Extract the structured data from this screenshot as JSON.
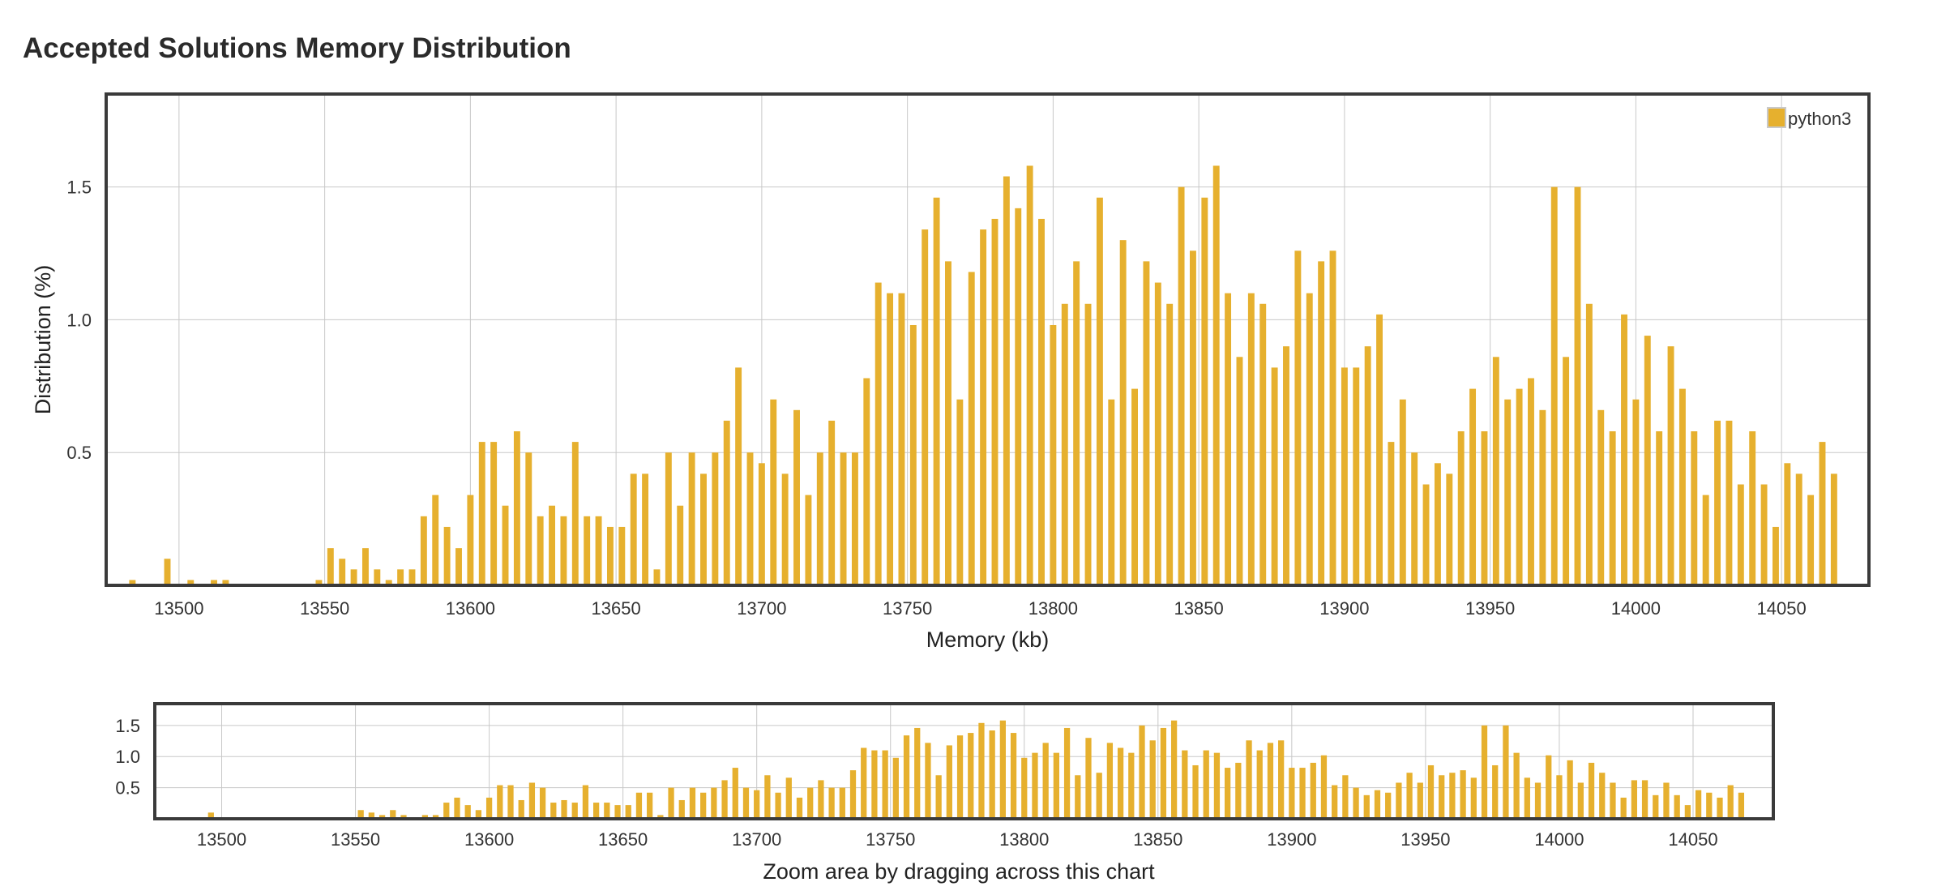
{
  "page": {
    "title": "Accepted Solutions Memory Distribution"
  },
  "navigator": {
    "hint": "Zoom area by dragging across this chart"
  },
  "colors": {
    "bar": "#e6b02e",
    "grid": "#c8c8c8",
    "frame": "#3a3a3a"
  },
  "chart_data": {
    "type": "bar",
    "title": "Accepted Solutions Memory Distribution",
    "xlabel": "Memory (kb)",
    "ylabel": "Distribution (%)",
    "xlim": [
      13475,
      14080
    ],
    "ylim": [
      0,
      1.85
    ],
    "x_ticks": [
      13500,
      13550,
      13600,
      13650,
      13700,
      13750,
      13800,
      13850,
      13900,
      13950,
      14000,
      14050
    ],
    "y_ticks": [
      0.5,
      1.0,
      1.5
    ],
    "y_tick_labels": [
      "0.5",
      "1.0",
      "1.5"
    ],
    "grid": true,
    "legend_position": "top-right",
    "series": [
      {
        "name": "python3",
        "color": "#e6b02e",
        "x": [
          13484,
          13496,
          13504,
          13512,
          13516,
          13548,
          13552,
          13556,
          13560,
          13564,
          13568,
          13572,
          13576,
          13580,
          13584,
          13588,
          13592,
          13596,
          13600,
          13604,
          13608,
          13612,
          13616,
          13620,
          13624,
          13628,
          13632,
          13636,
          13640,
          13644,
          13648,
          13652,
          13656,
          13660,
          13664,
          13668,
          13672,
          13676,
          13680,
          13684,
          13688,
          13692,
          13696,
          13700,
          13704,
          13708,
          13712,
          13716,
          13720,
          13724,
          13728,
          13732,
          13736,
          13740,
          13744,
          13748,
          13752,
          13756,
          13760,
          13764,
          13768,
          13772,
          13776,
          13780,
          13784,
          13788,
          13792,
          13796,
          13800,
          13804,
          13808,
          13812,
          13816,
          13820,
          13824,
          13828,
          13832,
          13836,
          13840,
          13844,
          13848,
          13852,
          13856,
          13860,
          13864,
          13868,
          13872,
          13876,
          13880,
          13884,
          13888,
          13892,
          13896,
          13900,
          13904,
          13908,
          13912,
          13916,
          13920,
          13924,
          13928,
          13932,
          13936,
          13940,
          13944,
          13948,
          13952,
          13956,
          13960,
          13964,
          13968,
          13972,
          13976,
          13980,
          13984,
          13988,
          13992,
          13996,
          14000,
          14004,
          14008,
          14012,
          14016,
          14020,
          14024,
          14028,
          14032,
          14036,
          14040,
          14044,
          14048,
          14052,
          14056,
          14060,
          14064,
          14068
        ],
        "values": [
          0.02,
          0.1,
          0.02,
          0.02,
          0.02,
          0.02,
          0.14,
          0.1,
          0.06,
          0.14,
          0.06,
          0.02,
          0.06,
          0.06,
          0.26,
          0.34,
          0.22,
          0.14,
          0.34,
          0.54,
          0.54,
          0.3,
          0.58,
          0.5,
          0.26,
          0.3,
          0.26,
          0.54,
          0.26,
          0.26,
          0.22,
          0.22,
          0.42,
          0.42,
          0.06,
          0.5,
          0.3,
          0.5,
          0.42,
          0.5,
          0.62,
          0.82,
          0.5,
          0.46,
          0.7,
          0.42,
          0.66,
          0.34,
          0.5,
          0.62,
          0.5,
          0.5,
          0.78,
          1.14,
          1.1,
          1.1,
          0.98,
          1.34,
          1.46,
          1.22,
          0.7,
          1.18,
          1.34,
          1.38,
          1.54,
          1.42,
          1.58,
          1.38,
          0.98,
          1.06,
          1.22,
          1.06,
          1.46,
          0.7,
          1.3,
          0.74,
          1.22,
          1.14,
          1.06,
          1.5,
          1.26,
          1.46,
          1.58,
          1.1,
          0.86,
          1.1,
          1.06,
          0.82,
          0.9,
          1.26,
          1.1,
          1.22,
          1.26,
          0.82,
          0.82,
          0.9,
          1.02,
          0.54,
          0.7,
          0.5,
          0.38,
          0.46,
          0.42,
          0.58,
          0.74,
          0.58,
          0.86,
          0.7,
          0.74,
          0.78,
          0.66,
          1.5,
          0.86,
          1.5,
          1.06,
          0.66,
          0.58,
          1.02,
          0.7,
          0.94,
          0.58,
          0.9,
          0.74,
          0.58,
          0.34,
          0.62,
          0.62,
          0.38,
          0.58,
          0.38,
          0.22,
          0.46,
          0.42,
          0.34,
          0.54,
          0.42
        ]
      }
    ]
  }
}
